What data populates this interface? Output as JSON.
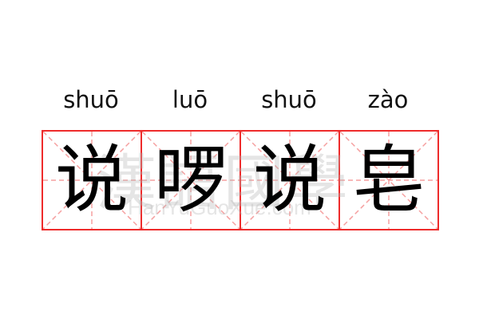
{
  "entries": [
    {
      "char": "说",
      "pinyin": "shuō"
    },
    {
      "char": "啰",
      "pinyin": "luō"
    },
    {
      "char": "说",
      "pinyin": "shuō"
    },
    {
      "char": "皂",
      "pinyin": "zào"
    }
  ],
  "watermark": {
    "cn": "漢語國學",
    "en": "HanYuGuoXue.com"
  },
  "colors": {
    "grid_border": "#ee2b2b",
    "grid_guides": "#f5a0a0",
    "text": "#000000"
  }
}
